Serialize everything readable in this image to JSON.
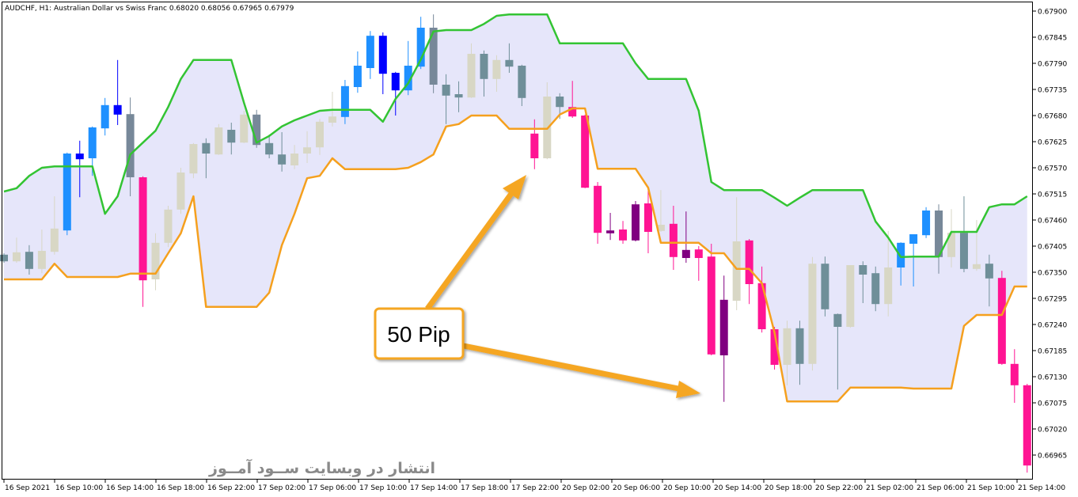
{
  "chart_title": "AUDCHF, H1:  Australian Dollar vs Swiss Franc  0.68020 0.68056 0.67965 0.67979",
  "watermark": "انتشار در وبسایت  ســود آمــوز",
  "annotation": {
    "label": "50 Pip",
    "color": "#f5a623"
  },
  "colors": {
    "upper_band": "#33c433",
    "lower_band": "#f5a01e",
    "band_fill": "#e6e6fa",
    "palette": {
      "B": "#1e90ff",
      "N": "#0000ff",
      "W": "#d8d7c5",
      "G": "#6f8f99",
      "S": "#778899",
      "P": "#ff1493",
      "V": "#800080"
    }
  },
  "chart_data": {
    "type": "candlestick",
    "symbol": "AUDCHF",
    "timeframe": "H1",
    "ylim": [
      0.6693,
      0.6791
    ],
    "y_ticks": [
      "0.67900",
      "0.67845",
      "0.67790",
      "0.67735",
      "0.67680",
      "0.67625",
      "0.67570",
      "0.67515",
      "0.67460",
      "0.67405",
      "0.67350",
      "0.67295",
      "0.67240",
      "0.67185",
      "0.67130",
      "0.67075",
      "0.67020",
      "0.66965"
    ],
    "x_ticks": [
      "16 Sep 2021",
      "16 Sep 10:00",
      "16 Sep 14:00",
      "16 Sep 18:00",
      "16 Sep 22:00",
      "17 Sep 02:00",
      "17 Sep 06:00",
      "17 Sep 10:00",
      "17 Sep 14:00",
      "17 Sep 18:00",
      "17 Sep 22:00",
      "20 Sep 02:00",
      "20 Sep 06:00",
      "20 Sep 10:00",
      "20 Sep 14:00",
      "20 Sep 18:00",
      "20 Sep 22:00",
      "21 Sep 02:00",
      "21 Sep 06:00",
      "21 Sep 10:00",
      "21 Sep 14:00"
    ],
    "candle_fields": [
      "open",
      "high",
      "low",
      "close",
      "color"
    ],
    "candles": [
      [
        0.67387,
        0.6739,
        0.6737,
        0.67373,
        "G"
      ],
      [
        0.67373,
        0.67423,
        0.6737,
        0.67392,
        "W"
      ],
      [
        0.67393,
        0.67407,
        0.67345,
        0.67357,
        "G"
      ],
      [
        0.67357,
        0.6744,
        0.67348,
        0.67395,
        "W"
      ],
      [
        0.67393,
        0.6751,
        0.67387,
        0.67442,
        "W"
      ],
      [
        0.67438,
        0.67602,
        0.67428,
        0.676,
        "B"
      ],
      [
        0.676,
        0.67627,
        0.67508,
        0.67588,
        "N"
      ],
      [
        0.6759,
        0.67657,
        0.67553,
        0.67655,
        "B"
      ],
      [
        0.67653,
        0.67717,
        0.67638,
        0.67702,
        "B"
      ],
      [
        0.67702,
        0.67797,
        0.6766,
        0.67682,
        "N"
      ],
      [
        0.67683,
        0.67718,
        0.6751,
        0.6755,
        "S"
      ],
      [
        0.6755,
        0.67552,
        0.67277,
        0.67333,
        "P"
      ],
      [
        0.67335,
        0.67432,
        0.67312,
        0.67412,
        "W"
      ],
      [
        0.67412,
        0.6749,
        0.67403,
        0.67482,
        "W"
      ],
      [
        0.67482,
        0.6757,
        0.67473,
        0.6756,
        "W"
      ],
      [
        0.67558,
        0.67622,
        0.67548,
        0.6762,
        "W"
      ],
      [
        0.67622,
        0.67632,
        0.67548,
        0.676,
        "G"
      ],
      [
        0.67598,
        0.67662,
        0.67597,
        0.67655,
        "W"
      ],
      [
        0.6765,
        0.67665,
        0.67598,
        0.67623,
        "G"
      ],
      [
        0.67623,
        0.6769,
        0.67622,
        0.67682,
        "W"
      ],
      [
        0.67682,
        0.67692,
        0.67612,
        0.67618,
        "S"
      ],
      [
        0.67622,
        0.6764,
        0.6759,
        0.67598,
        "G"
      ],
      [
        0.67598,
        0.67645,
        0.67562,
        0.67577,
        "G"
      ],
      [
        0.67575,
        0.67618,
        0.67567,
        0.676,
        "W"
      ],
      [
        0.676,
        0.67647,
        0.6758,
        0.67613,
        "W"
      ],
      [
        0.67613,
        0.67673,
        0.67597,
        0.67667,
        "W"
      ],
      [
        0.67665,
        0.6773,
        0.67657,
        0.67678,
        "W"
      ],
      [
        0.67677,
        0.67755,
        0.67662,
        0.67742,
        "B"
      ],
      [
        0.6774,
        0.67815,
        0.67728,
        0.67785,
        "B"
      ],
      [
        0.6778,
        0.67858,
        0.67757,
        0.67848,
        "B"
      ],
      [
        0.67848,
        0.67855,
        0.67725,
        0.67768,
        "N"
      ],
      [
        0.6777,
        0.67772,
        0.6768,
        0.67733,
        "N"
      ],
      [
        0.67733,
        0.67837,
        0.67723,
        0.67785,
        "B"
      ],
      [
        0.67783,
        0.67888,
        0.67778,
        0.67865,
        "B"
      ],
      [
        0.67865,
        0.67893,
        0.67727,
        0.67745,
        "S"
      ],
      [
        0.67745,
        0.67767,
        0.67662,
        0.67722,
        "G"
      ],
      [
        0.67725,
        0.67752,
        0.67687,
        0.67718,
        "G"
      ],
      [
        0.67718,
        0.67832,
        0.67717,
        0.6781,
        "W"
      ],
      [
        0.6781,
        0.67817,
        0.6772,
        0.67757,
        "G"
      ],
      [
        0.67757,
        0.67807,
        0.6773,
        0.67797,
        "W"
      ],
      [
        0.67797,
        0.67832,
        0.6777,
        0.67783,
        "G"
      ],
      [
        0.67785,
        0.67787,
        0.677,
        0.67717,
        "G"
      ],
      [
        0.67642,
        0.67672,
        0.67567,
        0.6759,
        "P"
      ],
      [
        0.6759,
        0.6775,
        0.67588,
        0.6772,
        "W"
      ],
      [
        0.6772,
        0.67727,
        0.67673,
        0.67698,
        "G"
      ],
      [
        0.67698,
        0.67753,
        0.67675,
        0.67678,
        "P"
      ],
      [
        0.6768,
        0.67682,
        0.67527,
        0.67528,
        "P"
      ],
      [
        0.67532,
        0.6754,
        0.6741,
        0.67433,
        "P"
      ],
      [
        0.67438,
        0.67475,
        0.67418,
        0.67432,
        "V"
      ],
      [
        0.6744,
        0.67458,
        0.6741,
        0.67417,
        "P"
      ],
      [
        0.67417,
        0.675,
        0.67415,
        0.67493,
        "V"
      ],
      [
        0.67495,
        0.67523,
        0.6739,
        0.67435,
        "P"
      ],
      [
        0.67437,
        0.67523,
        0.67435,
        0.6745,
        "W"
      ],
      [
        0.67452,
        0.6749,
        0.67355,
        0.67382,
        "P"
      ],
      [
        0.6738,
        0.67478,
        0.6737,
        0.67397,
        "V"
      ],
      [
        0.67398,
        0.67405,
        0.67332,
        0.6738,
        "P"
      ],
      [
        0.67383,
        0.6741,
        0.67175,
        0.67177,
        "P"
      ],
      [
        0.67175,
        0.67343,
        0.67077,
        0.67292,
        "V"
      ],
      [
        0.6729,
        0.67508,
        0.6727,
        0.67415,
        "W"
      ],
      [
        0.67417,
        0.6742,
        0.67283,
        0.67325,
        "P"
      ],
      [
        0.67327,
        0.67362,
        0.67223,
        0.6723,
        "P"
      ],
      [
        0.6723,
        0.67235,
        0.67145,
        0.67155,
        "P"
      ],
      [
        0.67155,
        0.67248,
        0.67112,
        0.67232,
        "W"
      ],
      [
        0.67232,
        0.67248,
        0.67113,
        0.67157,
        "G"
      ],
      [
        0.67157,
        0.67382,
        0.67143,
        0.67368,
        "W"
      ],
      [
        0.67368,
        0.67383,
        0.67257,
        0.67272,
        "G"
      ],
      [
        0.67262,
        0.67263,
        0.67103,
        0.67235,
        "G"
      ],
      [
        0.67235,
        0.67365,
        0.67233,
        0.67365,
        "W"
      ],
      [
        0.67365,
        0.67373,
        0.67285,
        0.67345,
        "G"
      ],
      [
        0.67348,
        0.67362,
        0.67268,
        0.67283,
        "G"
      ],
      [
        0.67283,
        0.67437,
        0.67257,
        0.6736,
        "W"
      ],
      [
        0.6736,
        0.67413,
        0.67322,
        0.67412,
        "B"
      ],
      [
        0.6741,
        0.6743,
        0.6732,
        0.6743,
        "B"
      ],
      [
        0.67428,
        0.67487,
        0.67422,
        0.6748,
        "B"
      ],
      [
        0.6748,
        0.67493,
        0.67347,
        0.67382,
        "S"
      ],
      [
        0.67382,
        0.67483,
        0.6736,
        0.67433,
        "W"
      ],
      [
        0.67433,
        0.6751,
        0.6735,
        0.67357,
        "G"
      ],
      [
        0.67357,
        0.6746,
        0.67353,
        0.67367,
        "W"
      ],
      [
        0.67368,
        0.67387,
        0.67278,
        0.67337,
        "G"
      ],
      [
        0.67338,
        0.67353,
        0.67155,
        0.67157,
        "P"
      ],
      [
        0.67157,
        0.67188,
        0.67075,
        0.67112,
        "P"
      ],
      [
        0.67112,
        0.67115,
        0.66928,
        0.66943,
        "P"
      ]
    ],
    "upper_band": [
      0.6752,
      0.67527,
      0.67553,
      0.6757,
      0.67573,
      0.67573,
      0.67573,
      0.67573,
      0.67473,
      0.6751,
      0.67598,
      0.67623,
      0.67648,
      0.67698,
      0.67757,
      0.67797,
      0.67797,
      0.67797,
      0.67797,
      0.67707,
      0.67623,
      0.67637,
      0.67657,
      0.6767,
      0.6768,
      0.6769,
      0.67692,
      0.67692,
      0.67692,
      0.67692,
      0.67667,
      0.67715,
      0.67748,
      0.67798,
      0.67857,
      0.6786,
      0.6786,
      0.6786,
      0.67873,
      0.6789,
      0.67893,
      0.67893,
      0.67893,
      0.67893,
      0.67832,
      0.67832,
      0.67832,
      0.67832,
      0.67832,
      0.67832,
      0.6779,
      0.67757,
      0.67757,
      0.67757,
      0.67757,
      0.6769,
      0.6754,
      0.67523,
      0.67523,
      0.67523,
      0.67523,
      0.67507,
      0.6749,
      0.67507,
      0.67523,
      0.67523,
      0.67523,
      0.67523,
      0.67523,
      0.67457,
      0.67423,
      0.67382,
      0.67383,
      0.67383,
      0.67383,
      0.67435,
      0.67435,
      0.67435,
      0.67487,
      0.67493,
      0.67493,
      0.6751
    ],
    "lower_band": [
      0.67335,
      0.67335,
      0.67335,
      0.67335,
      0.67368,
      0.6734,
      0.6734,
      0.6734,
      0.6734,
      0.6734,
      0.67347,
      0.67347,
      0.67347,
      0.6739,
      0.67432,
      0.6751,
      0.67277,
      0.67277,
      0.67277,
      0.67277,
      0.67277,
      0.67307,
      0.67407,
      0.67473,
      0.67548,
      0.67553,
      0.6759,
      0.67567,
      0.67567,
      0.67567,
      0.67567,
      0.67567,
      0.6757,
      0.67582,
      0.67598,
      0.67657,
      0.67662,
      0.6768,
      0.6768,
      0.6768,
      0.67652,
      0.67652,
      0.67652,
      0.67652,
      0.67682,
      0.67695,
      0.67695,
      0.67568,
      0.67568,
      0.67568,
      0.67568,
      0.67528,
      0.67412,
      0.67412,
      0.67412,
      0.67412,
      0.6739,
      0.6739,
      0.67357,
      0.67357,
      0.67327,
      0.67223,
      0.67078,
      0.67078,
      0.67078,
      0.67078,
      0.67078,
      0.67107,
      0.67107,
      0.67107,
      0.67107,
      0.67107,
      0.67105,
      0.67105,
      0.67105,
      0.67105,
      0.67237,
      0.6726,
      0.6726,
      0.6726,
      0.6732,
      0.6732
    ],
    "grid": false
  }
}
